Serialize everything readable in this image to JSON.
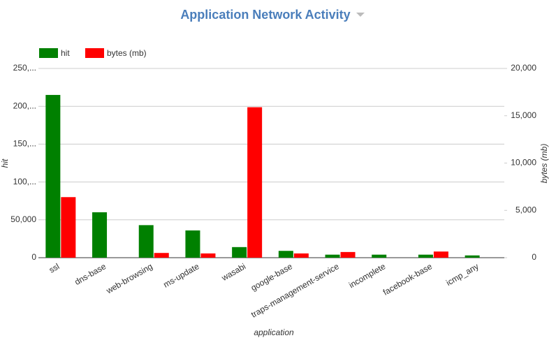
{
  "chart_data": {
    "type": "bar",
    "title": "Application Network Activity",
    "x_label": "application",
    "y_label": "hit",
    "y2_label": "bytes (mb)",
    "categories": [
      "ssl",
      "dns-base",
      "web-browsing",
      "ms-update",
      "wasabi",
      "google-base",
      "traps-management-service",
      "incomplete",
      "facebook-base",
      "icmp_any"
    ],
    "series": [
      {
        "name": "hit",
        "color": "#008000",
        "values": [
          215000,
          60000,
          43000,
          36000,
          14000,
          9000,
          4000,
          4000,
          4000,
          3000
        ]
      },
      {
        "name": "bytes (mb)",
        "color": "#ff0000",
        "axis": "y2",
        "values": [
          6400,
          0,
          500,
          450,
          15900,
          450,
          600,
          0,
          650,
          0
        ]
      }
    ],
    "ylim": [
      0,
      250000
    ],
    "yticks": [
      0,
      {
        "value": 50000,
        "label": "50,000"
      },
      {
        "value": 100000,
        "label": "100,..."
      },
      {
        "value": 150000,
        "label": "150,..."
      },
      {
        "value": 200000,
        "label": "200,..."
      },
      {
        "value": 250000,
        "label": "250,..."
      }
    ],
    "y2lim": [
      0,
      20000
    ],
    "y2ticks": [
      0,
      {
        "value": 5000,
        "label": "5,000"
      },
      {
        "value": 10000,
        "label": "10,000"
      },
      {
        "value": 15000,
        "label": "15,000"
      },
      {
        "value": 20000,
        "label": "20,000"
      }
    ],
    "grid": true,
    "legend": "top-left"
  }
}
